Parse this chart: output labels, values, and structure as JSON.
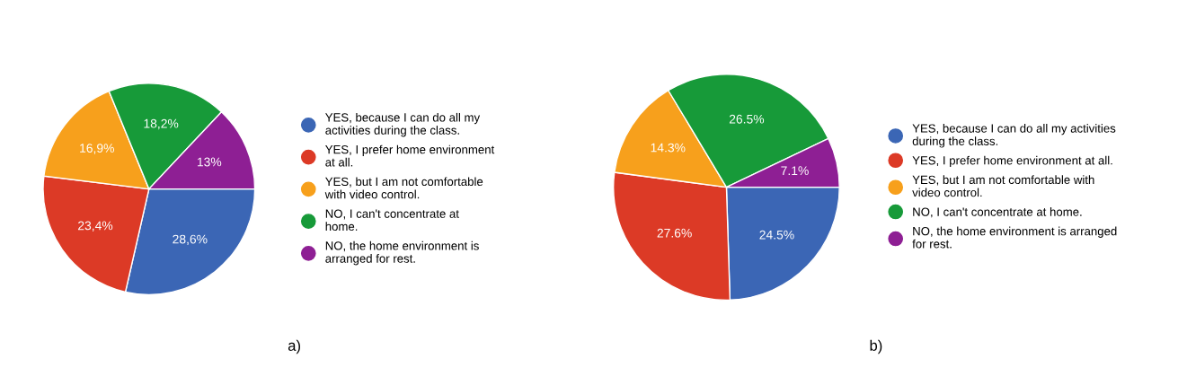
{
  "chart_data": [
    {
      "type": "pie",
      "categories": [
        "YES, because I can do all my activities during the class.",
        "YES, I prefer home environment at all.",
        "YES, but I am not comfortable with video control.",
        "NO, I can't concentrate at home.",
        "NO, the home environment is arranged for rest."
      ],
      "values": [
        28.6,
        23.4,
        16.9,
        18.2,
        13
      ],
      "value_labels": [
        "28,6%",
        "23,4%",
        "16,9%",
        "18,2%",
        "13%"
      ],
      "colors": [
        "#3b66b5",
        "#dc3a26",
        "#f7a01c",
        "#179a39",
        "#8e1f94"
      ],
      "legend": "right",
      "marker": "circle",
      "annotations": [
        "a)"
      ]
    },
    {
      "type": "pie",
      "categories": [
        "YES, because I can do all my activities during the class.",
        "YES, I prefer home environment at all.",
        "YES, but I am not comfortable with video control.",
        "NO, I can't concentrate at home.",
        "NO, the home environment is arranged for rest."
      ],
      "values": [
        24.5,
        27.6,
        14.3,
        26.5,
        7.1
      ],
      "value_labels": [
        "24.5%",
        "27.6%",
        "14.3%",
        "26.5%",
        "7.1%"
      ],
      "colors": [
        "#3b66b5",
        "#dc3a26",
        "#f7a01c",
        "#179a39",
        "#8e1f94"
      ],
      "legend": "right",
      "marker": "circle",
      "annotations": [
        "b)"
      ]
    }
  ]
}
